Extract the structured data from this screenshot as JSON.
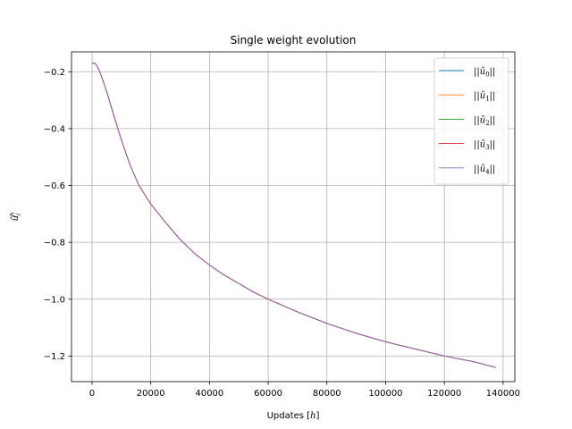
{
  "chart_data": {
    "type": "line",
    "title": "Single weight evolution",
    "xlabel": "Updates [h]",
    "ylabel": "û_i^h",
    "xlim": [
      -7000,
      144000
    ],
    "ylim": [
      -1.29,
      -0.13
    ],
    "xticks": [
      0,
      20000,
      40000,
      60000,
      80000,
      100000,
      120000,
      140000
    ],
    "yticks": [
      -0.2,
      -0.4,
      -0.6,
      -0.8,
      -1.0,
      -1.2
    ],
    "xtick_labels": [
      "0",
      "20000",
      "40000",
      "60000",
      "80000",
      "100000",
      "120000",
      "140000"
    ],
    "ytick_labels": [
      "−0.2",
      "−0.4",
      "−0.6",
      "−0.8",
      "−1.0",
      "−1.2"
    ],
    "grid": true,
    "legend_position": "top-right",
    "x": [
      0,
      1000,
      2000,
      3000,
      5000,
      7000,
      10000,
      13000,
      16000,
      20000,
      25000,
      30000,
      35000,
      40000,
      45000,
      50000,
      55000,
      60000,
      70000,
      80000,
      90000,
      100000,
      110000,
      120000,
      130000,
      137500
    ],
    "series": [
      {
        "name": "||û_0||",
        "color": "#1f77b4",
        "values": [
          -0.17,
          -0.17,
          -0.185,
          -0.21,
          -0.27,
          -0.34,
          -0.44,
          -0.53,
          -0.6,
          -0.665,
          -0.73,
          -0.79,
          -0.84,
          -0.88,
          -0.915,
          -0.945,
          -0.975,
          -1.0,
          -1.045,
          -1.085,
          -1.12,
          -1.15,
          -1.175,
          -1.2,
          -1.22,
          -1.24
        ]
      },
      {
        "name": "||û_1||",
        "color": "#ff7f0e",
        "values": [
          -0.17,
          -0.17,
          -0.185,
          -0.21,
          -0.27,
          -0.34,
          -0.44,
          -0.53,
          -0.6,
          -0.665,
          -0.73,
          -0.79,
          -0.84,
          -0.88,
          -0.915,
          -0.945,
          -0.975,
          -1.0,
          -1.045,
          -1.085,
          -1.12,
          -1.15,
          -1.175,
          -1.2,
          -1.22,
          -1.24
        ]
      },
      {
        "name": "||û_2||",
        "color": "#2ca02c",
        "values": [
          -0.17,
          -0.17,
          -0.185,
          -0.21,
          -0.27,
          -0.34,
          -0.44,
          -0.53,
          -0.6,
          -0.665,
          -0.73,
          -0.79,
          -0.84,
          -0.88,
          -0.915,
          -0.945,
          -0.975,
          -1.0,
          -1.045,
          -1.085,
          -1.12,
          -1.15,
          -1.175,
          -1.2,
          -1.22,
          -1.24
        ]
      },
      {
        "name": "||û_3||",
        "color": "#d62728",
        "values": [
          -0.17,
          -0.17,
          -0.185,
          -0.21,
          -0.27,
          -0.34,
          -0.44,
          -0.53,
          -0.6,
          -0.665,
          -0.73,
          -0.79,
          -0.84,
          -0.88,
          -0.915,
          -0.945,
          -0.975,
          -1.0,
          -1.045,
          -1.085,
          -1.12,
          -1.15,
          -1.175,
          -1.2,
          -1.22,
          -1.24
        ]
      },
      {
        "name": "||û_4||",
        "color": "#9467bd",
        "values": [
          -0.17,
          -0.17,
          -0.185,
          -0.21,
          -0.27,
          -0.34,
          -0.44,
          -0.53,
          -0.6,
          -0.665,
          -0.73,
          -0.79,
          -0.84,
          -0.88,
          -0.915,
          -0.945,
          -0.975,
          -1.0,
          -1.045,
          -1.085,
          -1.12,
          -1.15,
          -1.175,
          -1.2,
          -1.22,
          -1.24
        ]
      }
    ]
  }
}
